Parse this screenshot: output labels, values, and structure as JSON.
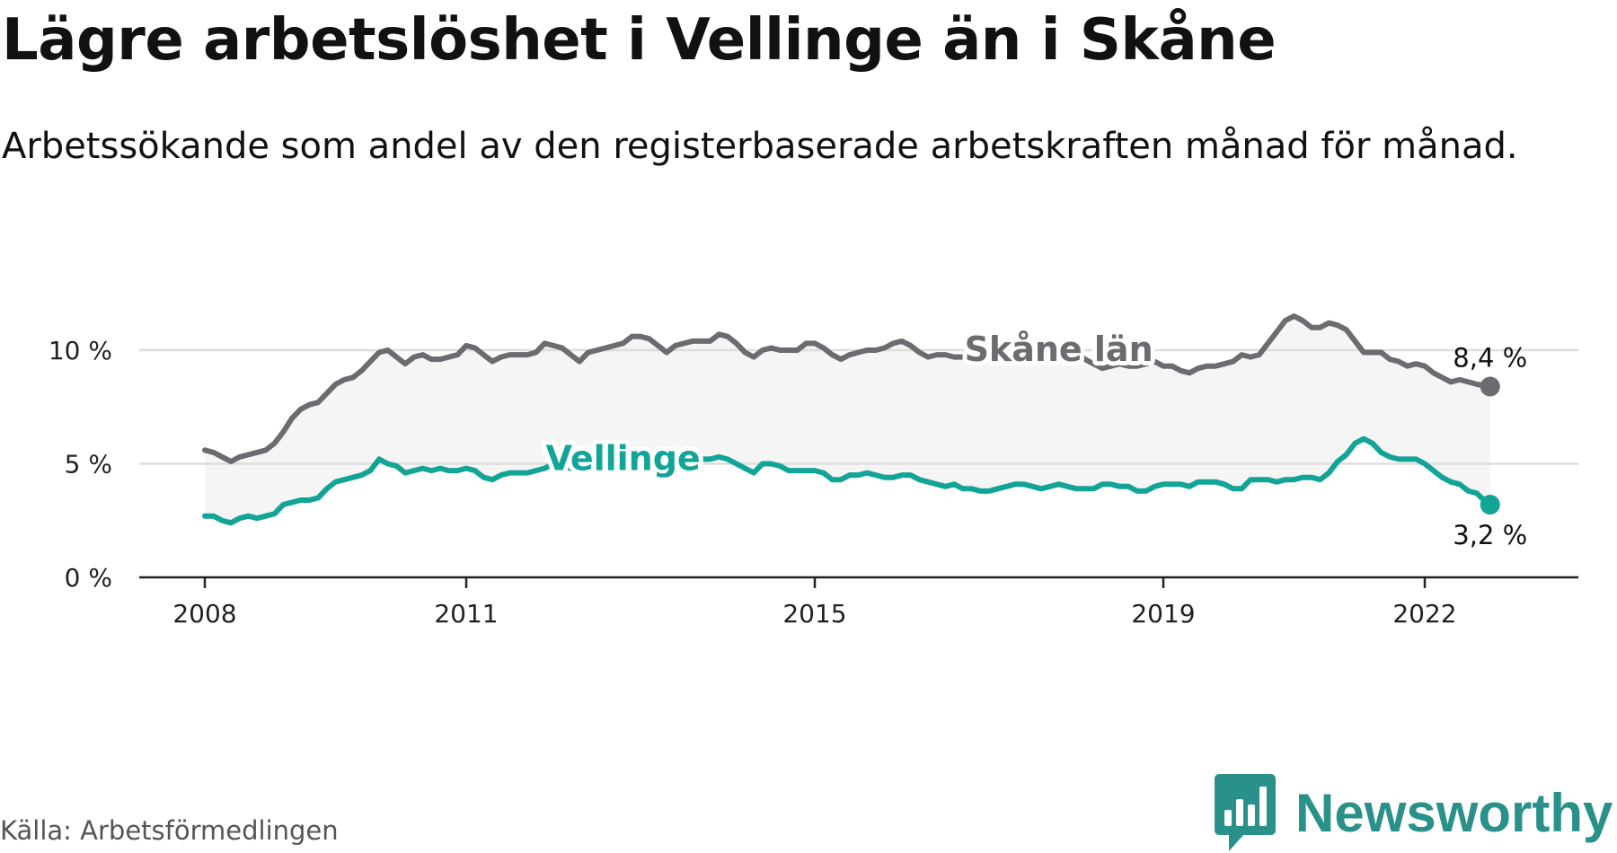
{
  "title": "Lägre arbetslöshet i Vellinge än i Skåne",
  "subtitle": "Arbetssökande som andel av den registerbaserade arbetskraften månad för månad.",
  "source": "Källa: Arbetsförmedlingen",
  "brand": {
    "name": "Newsworthy",
    "icon": "newsworthy-chart-bubble-icon",
    "color": "#29918a"
  },
  "colors": {
    "skane": "#6b6b70",
    "vellinge": "#12a497",
    "band": "#f5f5f5",
    "grid": "#dddddd",
    "axis": "#222222"
  },
  "chart_data": {
    "type": "line",
    "title": "Lägre arbetslöshet i Vellinge än i Skåne",
    "xlabel": "",
    "ylabel": "",
    "xlim": [
      2008.0,
      2023.0
    ],
    "ylim": [
      0,
      10
    ],
    "y_ticks": [
      0,
      5,
      10
    ],
    "y_tick_labels": [
      "0 %",
      "5 %",
      "10 %"
    ],
    "x_ticks": [
      2008,
      2011,
      2015,
      2019,
      2022
    ],
    "x_tick_labels": [
      "2008",
      "2011",
      "2015",
      "2019",
      "2022"
    ],
    "grid": true,
    "band_between_series": true,
    "series": [
      {
        "name": "Skåne län",
        "color": "#6b6b70",
        "end_label": "8,4 %",
        "points": [
          [
            2008.0,
            5.6
          ],
          [
            2008.1,
            5.5
          ],
          [
            2008.2,
            5.3
          ],
          [
            2008.3,
            5.1
          ],
          [
            2008.4,
            5.3
          ],
          [
            2008.5,
            5.4
          ],
          [
            2008.6,
            5.5
          ],
          [
            2008.7,
            5.6
          ],
          [
            2008.8,
            5.9
          ],
          [
            2008.9,
            6.4
          ],
          [
            2009.0,
            7.0
          ],
          [
            2009.1,
            7.4
          ],
          [
            2009.2,
            7.6
          ],
          [
            2009.3,
            7.7
          ],
          [
            2009.4,
            8.1
          ],
          [
            2009.5,
            8.5
          ],
          [
            2009.6,
            8.7
          ],
          [
            2009.7,
            8.8
          ],
          [
            2009.8,
            9.1
          ],
          [
            2009.9,
            9.5
          ],
          [
            2010.0,
            9.9
          ],
          [
            2010.1,
            10.0
          ],
          [
            2010.2,
            9.7
          ],
          [
            2010.3,
            9.4
          ],
          [
            2010.4,
            9.7
          ],
          [
            2010.5,
            9.8
          ],
          [
            2010.6,
            9.6
          ],
          [
            2010.7,
            9.6
          ],
          [
            2010.8,
            9.7
          ],
          [
            2010.9,
            9.8
          ],
          [
            2011.0,
            10.2
          ],
          [
            2011.1,
            10.1
          ],
          [
            2011.2,
            9.8
          ],
          [
            2011.3,
            9.5
          ],
          [
            2011.4,
            9.7
          ],
          [
            2011.5,
            9.8
          ],
          [
            2011.6,
            9.8
          ],
          [
            2011.7,
            9.8
          ],
          [
            2011.8,
            9.9
          ],
          [
            2011.9,
            10.3
          ],
          [
            2012.0,
            10.2
          ],
          [
            2012.1,
            10.1
          ],
          [
            2012.2,
            9.8
          ],
          [
            2012.3,
            9.5
          ],
          [
            2012.4,
            9.9
          ],
          [
            2012.5,
            10.0
          ],
          [
            2012.6,
            10.1
          ],
          [
            2012.7,
            10.2
          ],
          [
            2012.8,
            10.3
          ],
          [
            2012.9,
            10.6
          ],
          [
            2013.0,
            10.6
          ],
          [
            2013.1,
            10.5
          ],
          [
            2013.2,
            10.2
          ],
          [
            2013.3,
            9.9
          ],
          [
            2013.4,
            10.2
          ],
          [
            2013.5,
            10.3
          ],
          [
            2013.6,
            10.4
          ],
          [
            2013.7,
            10.4
          ],
          [
            2013.8,
            10.4
          ],
          [
            2013.9,
            10.7
          ],
          [
            2014.0,
            10.6
          ],
          [
            2014.1,
            10.3
          ],
          [
            2014.2,
            9.9
          ],
          [
            2014.3,
            9.7
          ],
          [
            2014.4,
            10.0
          ],
          [
            2014.5,
            10.1
          ],
          [
            2014.6,
            10.0
          ],
          [
            2014.7,
            10.0
          ],
          [
            2014.8,
            10.0
          ],
          [
            2014.9,
            10.3
          ],
          [
            2015.0,
            10.3
          ],
          [
            2015.1,
            10.1
          ],
          [
            2015.2,
            9.8
          ],
          [
            2015.3,
            9.6
          ],
          [
            2015.4,
            9.8
          ],
          [
            2015.5,
            9.9
          ],
          [
            2015.6,
            10.0
          ],
          [
            2015.7,
            10.0
          ],
          [
            2015.8,
            10.1
          ],
          [
            2015.9,
            10.3
          ],
          [
            2016.0,
            10.4
          ],
          [
            2016.1,
            10.2
          ],
          [
            2016.2,
            9.9
          ],
          [
            2016.3,
            9.7
          ],
          [
            2016.4,
            9.8
          ],
          [
            2016.5,
            9.8
          ],
          [
            2016.6,
            9.7
          ],
          [
            2016.7,
            9.7
          ],
          [
            2016.8,
            9.8
          ],
          [
            2016.9,
            9.9
          ],
          [
            2017.0,
            10.0
          ],
          [
            2017.1,
            9.9
          ],
          [
            2017.2,
            9.7
          ],
          [
            2017.3,
            9.5
          ],
          [
            2017.4,
            9.6
          ],
          [
            2017.5,
            9.7
          ],
          [
            2017.6,
            9.6
          ],
          [
            2017.7,
            9.6
          ],
          [
            2017.8,
            9.7
          ],
          [
            2017.9,
            9.8
          ],
          [
            2018.0,
            9.9
          ],
          [
            2018.1,
            9.6
          ],
          [
            2018.2,
            9.4
          ],
          [
            2018.3,
            9.2
          ],
          [
            2018.4,
            9.3
          ],
          [
            2018.5,
            9.4
          ],
          [
            2018.6,
            9.3
          ],
          [
            2018.7,
            9.3
          ],
          [
            2018.8,
            9.4
          ],
          [
            2018.9,
            9.5
          ],
          [
            2019.0,
            9.3
          ],
          [
            2019.1,
            9.3
          ],
          [
            2019.2,
            9.1
          ],
          [
            2019.3,
            9.0
          ],
          [
            2019.4,
            9.2
          ],
          [
            2019.5,
            9.3
          ],
          [
            2019.6,
            9.3
          ],
          [
            2019.7,
            9.4
          ],
          [
            2019.8,
            9.5
          ],
          [
            2019.9,
            9.8
          ],
          [
            2020.0,
            9.7
          ],
          [
            2020.1,
            9.8
          ],
          [
            2020.2,
            10.3
          ],
          [
            2020.3,
            10.8
          ],
          [
            2020.4,
            11.3
          ],
          [
            2020.5,
            11.5
          ],
          [
            2020.6,
            11.3
          ],
          [
            2020.7,
            11.0
          ],
          [
            2020.8,
            11.0
          ],
          [
            2020.9,
            11.2
          ],
          [
            2021.0,
            11.1
          ],
          [
            2021.1,
            10.9
          ],
          [
            2021.2,
            10.4
          ],
          [
            2021.3,
            9.9
          ],
          [
            2021.4,
            9.9
          ],
          [
            2021.5,
            9.9
          ],
          [
            2021.6,
            9.6
          ],
          [
            2021.7,
            9.5
          ],
          [
            2021.8,
            9.3
          ],
          [
            2021.9,
            9.4
          ],
          [
            2022.0,
            9.3
          ],
          [
            2022.1,
            9.0
          ],
          [
            2022.2,
            8.8
          ],
          [
            2022.3,
            8.6
          ],
          [
            2022.4,
            8.7
          ],
          [
            2022.5,
            8.6
          ],
          [
            2022.6,
            8.5
          ],
          [
            2022.75,
            8.4
          ]
        ]
      },
      {
        "name": "Vellinge",
        "color": "#12a497",
        "end_label": "3,2 %",
        "points": [
          [
            2008.0,
            2.7
          ],
          [
            2008.1,
            2.7
          ],
          [
            2008.2,
            2.5
          ],
          [
            2008.3,
            2.4
          ],
          [
            2008.4,
            2.6
          ],
          [
            2008.5,
            2.7
          ],
          [
            2008.6,
            2.6
          ],
          [
            2008.7,
            2.7
          ],
          [
            2008.8,
            2.8
          ],
          [
            2008.9,
            3.2
          ],
          [
            2009.0,
            3.3
          ],
          [
            2009.1,
            3.4
          ],
          [
            2009.2,
            3.4
          ],
          [
            2009.3,
            3.5
          ],
          [
            2009.4,
            3.9
          ],
          [
            2009.5,
            4.2
          ],
          [
            2009.6,
            4.3
          ],
          [
            2009.7,
            4.4
          ],
          [
            2009.8,
            4.5
          ],
          [
            2009.9,
            4.7
          ],
          [
            2010.0,
            5.2
          ],
          [
            2010.1,
            5.0
          ],
          [
            2010.2,
            4.9
          ],
          [
            2010.3,
            4.6
          ],
          [
            2010.4,
            4.7
          ],
          [
            2010.5,
            4.8
          ],
          [
            2010.6,
            4.7
          ],
          [
            2010.7,
            4.8
          ],
          [
            2010.8,
            4.7
          ],
          [
            2010.9,
            4.7
          ],
          [
            2011.0,
            4.8
          ],
          [
            2011.1,
            4.7
          ],
          [
            2011.2,
            4.4
          ],
          [
            2011.3,
            4.3
          ],
          [
            2011.4,
            4.5
          ],
          [
            2011.5,
            4.6
          ],
          [
            2011.6,
            4.6
          ],
          [
            2011.7,
            4.6
          ],
          [
            2011.8,
            4.7
          ],
          [
            2011.9,
            4.8
          ],
          [
            2012.0,
            5.0
          ],
          [
            2012.1,
            4.9
          ],
          [
            2012.2,
            4.8
          ],
          [
            2012.3,
            4.7
          ],
          [
            2012.4,
            4.9
          ],
          [
            2012.5,
            5.0
          ],
          [
            2012.6,
            5.1
          ],
          [
            2012.7,
            5.1
          ],
          [
            2012.8,
            5.1
          ],
          [
            2012.9,
            5.3
          ],
          [
            2013.0,
            5.3
          ],
          [
            2013.1,
            5.2
          ],
          [
            2013.2,
            5.0
          ],
          [
            2013.3,
            4.8
          ],
          [
            2013.4,
            5.0
          ],
          [
            2013.5,
            5.1
          ],
          [
            2013.6,
            5.2
          ],
          [
            2013.7,
            5.2
          ],
          [
            2013.8,
            5.2
          ],
          [
            2013.9,
            5.3
          ],
          [
            2014.0,
            5.2
          ],
          [
            2014.1,
            5.0
          ],
          [
            2014.2,
            4.8
          ],
          [
            2014.3,
            4.6
          ],
          [
            2014.4,
            5.0
          ],
          [
            2014.5,
            5.0
          ],
          [
            2014.6,
            4.9
          ],
          [
            2014.7,
            4.7
          ],
          [
            2014.8,
            4.7
          ],
          [
            2014.9,
            4.7
          ],
          [
            2015.0,
            4.7
          ],
          [
            2015.1,
            4.6
          ],
          [
            2015.2,
            4.3
          ],
          [
            2015.3,
            4.3
          ],
          [
            2015.4,
            4.5
          ],
          [
            2015.5,
            4.5
          ],
          [
            2015.6,
            4.6
          ],
          [
            2015.7,
            4.5
          ],
          [
            2015.8,
            4.4
          ],
          [
            2015.9,
            4.4
          ],
          [
            2016.0,
            4.5
          ],
          [
            2016.1,
            4.5
          ],
          [
            2016.2,
            4.3
          ],
          [
            2016.3,
            4.2
          ],
          [
            2016.4,
            4.1
          ],
          [
            2016.5,
            4.0
          ],
          [
            2016.6,
            4.1
          ],
          [
            2016.7,
            3.9
          ],
          [
            2016.8,
            3.9
          ],
          [
            2016.9,
            3.8
          ],
          [
            2017.0,
            3.8
          ],
          [
            2017.1,
            3.9
          ],
          [
            2017.2,
            4.0
          ],
          [
            2017.3,
            4.1
          ],
          [
            2017.4,
            4.1
          ],
          [
            2017.5,
            4.0
          ],
          [
            2017.6,
            3.9
          ],
          [
            2017.7,
            4.0
          ],
          [
            2017.8,
            4.1
          ],
          [
            2017.9,
            4.0
          ],
          [
            2018.0,
            3.9
          ],
          [
            2018.1,
            3.9
          ],
          [
            2018.2,
            3.9
          ],
          [
            2018.3,
            4.1
          ],
          [
            2018.4,
            4.1
          ],
          [
            2018.5,
            4.0
          ],
          [
            2018.6,
            4.0
          ],
          [
            2018.7,
            3.8
          ],
          [
            2018.8,
            3.8
          ],
          [
            2018.9,
            4.0
          ],
          [
            2019.0,
            4.1
          ],
          [
            2019.1,
            4.1
          ],
          [
            2019.2,
            4.1
          ],
          [
            2019.3,
            4.0
          ],
          [
            2019.4,
            4.2
          ],
          [
            2019.5,
            4.2
          ],
          [
            2019.6,
            4.2
          ],
          [
            2019.7,
            4.1
          ],
          [
            2019.8,
            3.9
          ],
          [
            2019.9,
            3.9
          ],
          [
            2020.0,
            4.3
          ],
          [
            2020.1,
            4.3
          ],
          [
            2020.2,
            4.3
          ],
          [
            2020.3,
            4.2
          ],
          [
            2020.4,
            4.3
          ],
          [
            2020.5,
            4.3
          ],
          [
            2020.6,
            4.4
          ],
          [
            2020.7,
            4.4
          ],
          [
            2020.8,
            4.3
          ],
          [
            2020.9,
            4.6
          ],
          [
            2021.0,
            5.1
          ],
          [
            2021.1,
            5.4
          ],
          [
            2021.2,
            5.9
          ],
          [
            2021.3,
            6.1
          ],
          [
            2021.4,
            5.9
          ],
          [
            2021.5,
            5.5
          ],
          [
            2021.6,
            5.3
          ],
          [
            2021.7,
            5.2
          ],
          [
            2021.8,
            5.2
          ],
          [
            2021.9,
            5.2
          ],
          [
            2022.0,
            5.0
          ],
          [
            2022.1,
            4.7
          ],
          [
            2022.2,
            4.4
          ],
          [
            2022.3,
            4.2
          ],
          [
            2022.4,
            4.1
          ],
          [
            2022.5,
            3.8
          ],
          [
            2022.6,
            3.7
          ],
          [
            2022.65,
            3.5
          ],
          [
            2022.7,
            3.4
          ],
          [
            2022.75,
            3.2
          ]
        ]
      }
    ],
    "labels": [
      {
        "series": "Skåne län",
        "text": "Skåne län",
        "x": 2017.8,
        "y": 10.0
      },
      {
        "series": "Vellinge",
        "text": "Vellinge",
        "x": 2012.8,
        "y": 5.2
      }
    ]
  }
}
